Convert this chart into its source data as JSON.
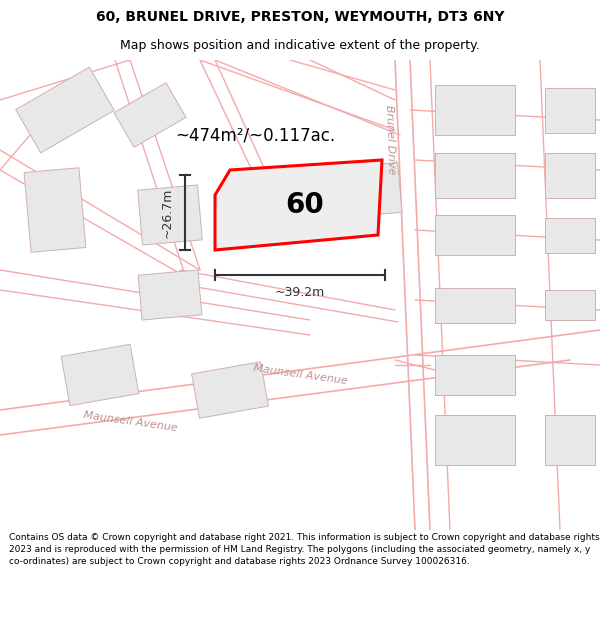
{
  "title_line1": "60, BRUNEL DRIVE, PRESTON, WEYMOUTH, DT3 6NY",
  "title_line2": "Map shows position and indicative extent of the property.",
  "footer_text": "Contains OS data © Crown copyright and database right 2021. This information is subject to Crown copyright and database rights 2023 and is reproduced with the permission of HM Land Registry. The polygons (including the associated geometry, namely x, y co-ordinates) are subject to Crown copyright and database rights 2023 Ordnance Survey 100026316.",
  "bg": "#ffffff",
  "road_color": "#f4aaaa",
  "building_fill": "#e8e8e8",
  "building_edge": "#d0b0b0",
  "plot_edge": "#ff0000",
  "plot_fill": "#f0f0f0",
  "plot_label": "60",
  "area_text": "~474m²/~0.117ac.",
  "dim_width_text": "~39.2m",
  "dim_height_text": "~26.7m",
  "dim_color": "#333333",
  "street_color": "#c09090",
  "title_fs": 10,
  "subtitle_fs": 9,
  "footer_fs": 6.5,
  "area_fs": 12,
  "plot_label_fs": 20,
  "dim_fs": 9,
  "street_fs": 8
}
